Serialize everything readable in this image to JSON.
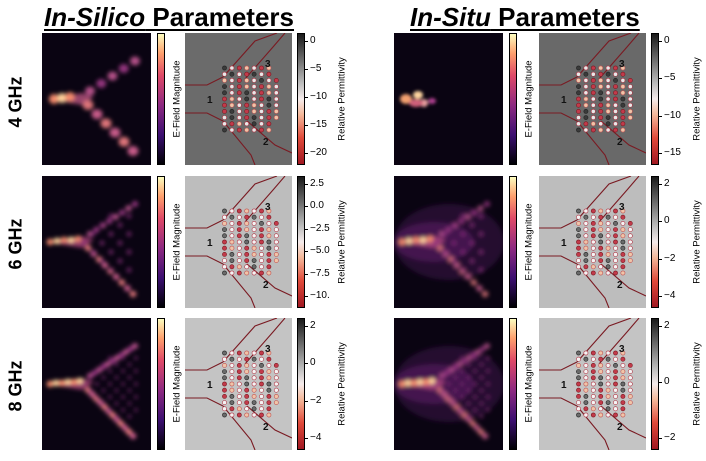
{
  "headers": {
    "in_silico": {
      "italic": "In-Silico",
      "rest": " Parameters"
    },
    "in_situ": {
      "italic": "In-Situ",
      "rest": " Parameters"
    }
  },
  "rows": [
    {
      "label": "4 GHz"
    },
    {
      "label": "6 GHz"
    },
    {
      "label": "8 GHz"
    }
  ],
  "colorbar_labels": {
    "efield": "E-Field Magnitude",
    "permittivity": "Relative Permittivity"
  },
  "port_labels": [
    "1",
    "2",
    "3"
  ],
  "ticks": {
    "silico": [
      [
        "0",
        "−5",
        "−10",
        "−15",
        "−20"
      ],
      [
        "2.5",
        "0.0",
        "−2.5",
        "−5.0",
        "−7.5",
        "−10."
      ],
      [
        "2",
        "0",
        "−2",
        "−4"
      ]
    ],
    "situ": [
      [
        "0",
        "−5",
        "−10",
        "−15"
      ],
      [
        "2",
        "0",
        "−2",
        "−4"
      ],
      [
        "2",
        "0",
        "−2"
      ]
    ]
  },
  "colors": {
    "border_line": "#7a1a22",
    "bg_row1_silico": "#6b6b6b",
    "bg_row1_situ": "#696969",
    "bg_row2": "#bdbdbd",
    "bg_row3": "#c4c4c4",
    "field_dark": "#0a0412"
  }
}
